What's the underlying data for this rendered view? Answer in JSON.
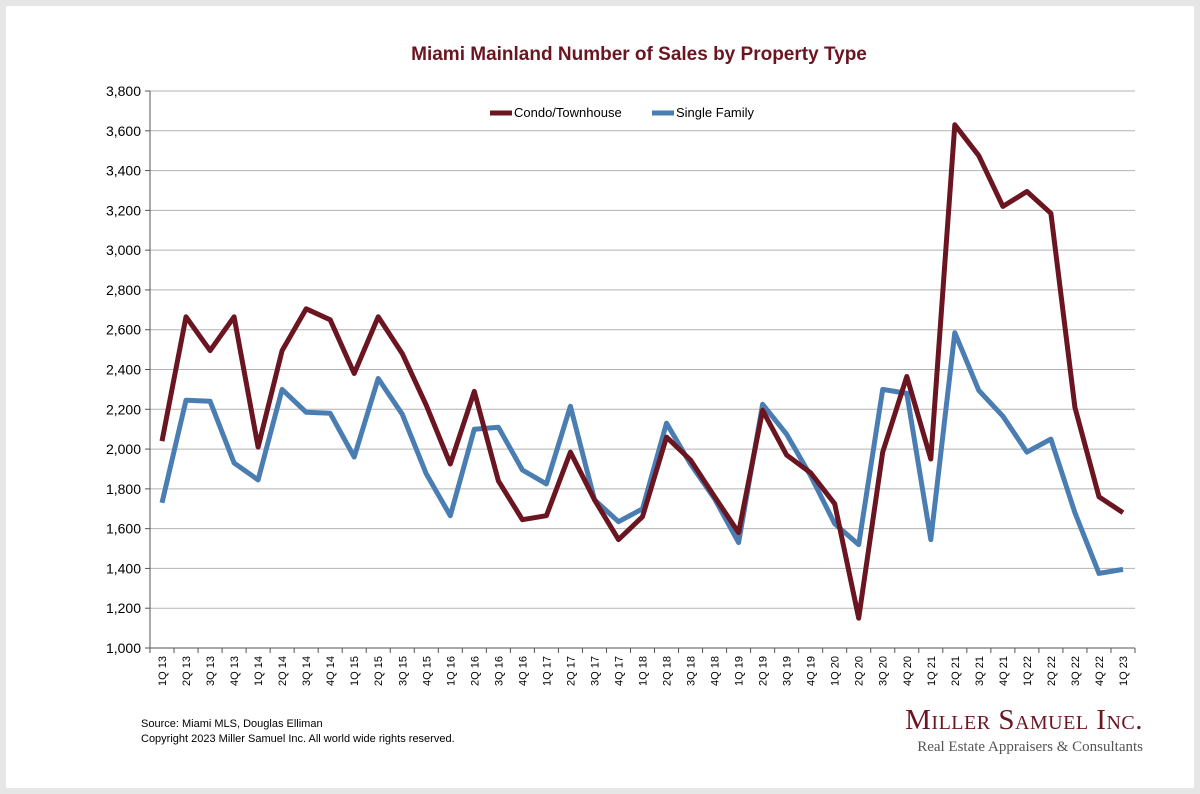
{
  "chart_data": {
    "type": "line",
    "title": "Miami Mainland Number of Sales by Property Type",
    "categories": [
      "1Q 13",
      "2Q 13",
      "3Q 13",
      "4Q 13",
      "1Q 14",
      "2Q 14",
      "3Q 14",
      "4Q 14",
      "1Q 15",
      "2Q 15",
      "3Q 15",
      "4Q 15",
      "1Q 16",
      "2Q 16",
      "3Q 16",
      "4Q 16",
      "1Q 17",
      "2Q 17",
      "3Q 17",
      "4Q 17",
      "1Q 18",
      "2Q 18",
      "3Q 18",
      "4Q 18",
      "1Q 19",
      "2Q 19",
      "3Q 19",
      "4Q 19",
      "1Q 20",
      "2Q 20",
      "3Q 20",
      "4Q 20",
      "1Q 21",
      "2Q 21",
      "3Q 21",
      "4Q 21",
      "1Q 22",
      "2Q 22",
      "3Q 22",
      "4Q 22",
      "1Q 23"
    ],
    "series": [
      {
        "name": "Condo/Townhouse",
        "color": "#6b1521",
        "values": [
          2040,
          2665,
          2495,
          2665,
          2010,
          2495,
          2705,
          2650,
          2380,
          2665,
          2480,
          2220,
          1925,
          2290,
          1840,
          1645,
          1665,
          1985,
          1745,
          1545,
          1660,
          2060,
          1945,
          1760,
          1580,
          2195,
          1970,
          1880,
          1725,
          1150,
          1985,
          2365,
          1950,
          3630,
          3475,
          3220,
          3295,
          3185,
          2210,
          1760,
          1680
        ]
      },
      {
        "name": "Single Family",
        "color": "#4a7eb3",
        "values": [
          1730,
          2245,
          2240,
          1930,
          1845,
          2300,
          2185,
          2180,
          1960,
          2355,
          2175,
          1875,
          1665,
          2100,
          2110,
          1895,
          1825,
          2215,
          1745,
          1635,
          1700,
          2130,
          1925,
          1750,
          1530,
          2225,
          2075,
          1865,
          1625,
          1520,
          2300,
          2280,
          1545,
          2585,
          2295,
          2165,
          1985,
          2050,
          1680,
          1375,
          1395
        ]
      }
    ],
    "ylim": [
      1000,
      3800
    ],
    "yticks": [
      1000,
      1200,
      1400,
      1600,
      1800,
      2000,
      2200,
      2400,
      2600,
      2800,
      3000,
      3200,
      3400,
      3600,
      3800
    ],
    "ytick_labels": [
      "1,000",
      "1,200",
      "1,400",
      "1,600",
      "1,800",
      "2,000",
      "2,200",
      "2,400",
      "2,600",
      "2,800",
      "3,000",
      "3,200",
      "3,400",
      "3,600",
      "3,800"
    ],
    "grid": true,
    "legend_position": "top-center"
  },
  "footer": {
    "source": "Source: Miami MLS, Douglas Elliman",
    "copyright": "Copyright 2023 Miller Samuel Inc.  All world wide rights reserved."
  },
  "brand": {
    "name": "Miller Samuel Inc.",
    "tagline": "Real Estate Appraisers & Consultants"
  }
}
